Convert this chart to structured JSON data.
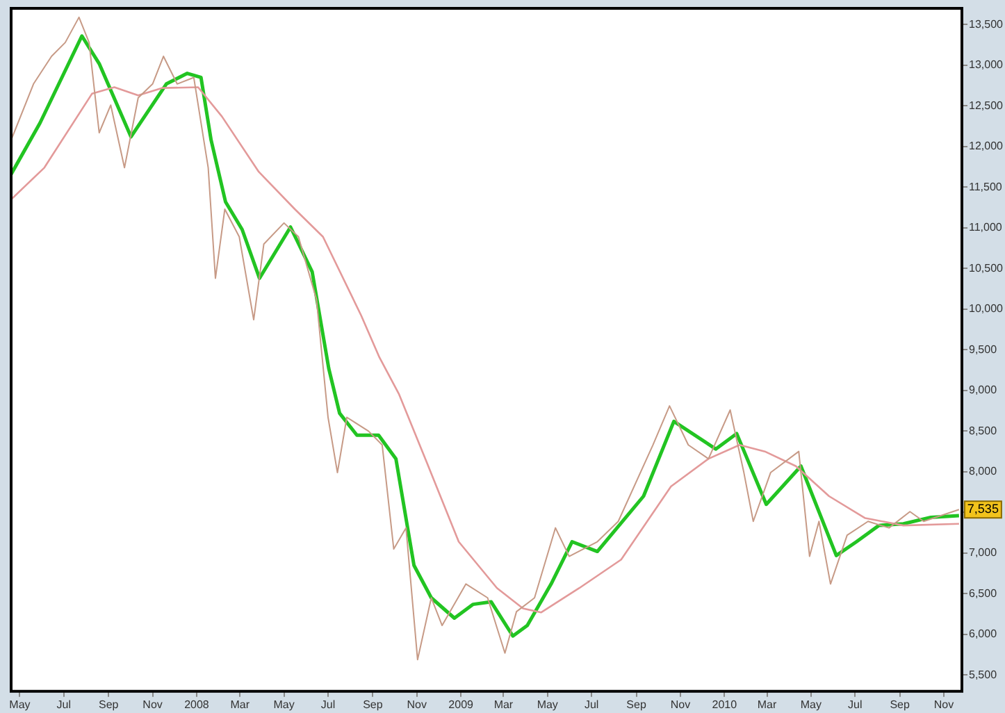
{
  "chart_data": {
    "type": "line",
    "xlim": [
      "2007-04-19",
      "2010-11-26"
    ],
    "ylim": [
      5300,
      13700
    ],
    "xticks": [
      {
        "value": "2007-05-01",
        "label": "May"
      },
      {
        "value": "2007-07-01",
        "label": "Jul"
      },
      {
        "value": "2007-09-01",
        "label": "Sep"
      },
      {
        "value": "2007-11-01",
        "label": "Nov"
      },
      {
        "value": "2008-01-01",
        "label": "2008"
      },
      {
        "value": "2008-03-01",
        "label": "Mar"
      },
      {
        "value": "2008-05-01",
        "label": "May"
      },
      {
        "value": "2008-07-01",
        "label": "Jul"
      },
      {
        "value": "2008-09-01",
        "label": "Sep"
      },
      {
        "value": "2008-11-01",
        "label": "Nov"
      },
      {
        "value": "2009-01-01",
        "label": "2009"
      },
      {
        "value": "2009-03-01",
        "label": "Mar"
      },
      {
        "value": "2009-05-01",
        "label": "May"
      },
      {
        "value": "2009-07-01",
        "label": "Jul"
      },
      {
        "value": "2009-09-01",
        "label": "Sep"
      },
      {
        "value": "2009-11-01",
        "label": "Nov"
      },
      {
        "value": "2010-01-01",
        "label": "2010"
      },
      {
        "value": "2010-03-01",
        "label": "Mar"
      },
      {
        "value": "2010-05-01",
        "label": "May"
      },
      {
        "value": "2010-07-01",
        "label": "Jul"
      },
      {
        "value": "2010-09-01",
        "label": "Sep"
      },
      {
        "value": "2010-11-01",
        "label": "Nov"
      }
    ],
    "yticks": [
      {
        "value": 5500,
        "label": "5,500"
      },
      {
        "value": 6000,
        "label": "6,000"
      },
      {
        "value": 6500,
        "label": "6,500"
      },
      {
        "value": 7000,
        "label": "7,000"
      },
      {
        "value": 7500,
        "label": null
      },
      {
        "value": 8000,
        "label": "8,000"
      },
      {
        "value": 8500,
        "label": "8,500"
      },
      {
        "value": 9000,
        "label": "9,000"
      },
      {
        "value": 9500,
        "label": "9,500"
      },
      {
        "value": 10000,
        "label": "10,000"
      },
      {
        "value": 10500,
        "label": "10,500"
      },
      {
        "value": 11000,
        "label": "11,000"
      },
      {
        "value": 11500,
        "label": "11,500"
      },
      {
        "value": 12000,
        "label": "12,000"
      },
      {
        "value": 12500,
        "label": "12,500"
      },
      {
        "value": 13000,
        "label": "13,000"
      },
      {
        "value": 13500,
        "label": "13,500"
      }
    ],
    "grid": false,
    "legend": false,
    "marker": "none",
    "annotations": [
      {
        "text": "7,535",
        "x": "2010-11-22",
        "y": 7535
      }
    ],
    "series": [
      {
        "color": "#c79a86",
        "x": [
          "2007-04-19",
          "2007-05-20",
          "2007-06-14",
          "2007-07-03",
          "2007-07-22",
          "2007-08-05",
          "2007-08-19",
          "2007-09-04",
          "2007-09-23",
          "2007-10-12",
          "2007-11-01",
          "2007-11-16",
          "2007-12-05",
          "2007-12-28",
          "2008-01-17",
          "2008-01-27",
          "2008-02-09",
          "2008-02-29",
          "2008-03-20",
          "2008-04-03",
          "2008-05-01",
          "2008-05-21",
          "2008-06-15",
          "2008-07-01",
          "2008-07-14",
          "2008-07-27",
          "2008-08-26",
          "2008-09-14",
          "2008-09-30",
          "2008-10-17",
          "2008-11-02",
          "2008-11-21",
          "2008-12-06",
          "2009-01-08",
          "2009-02-07",
          "2009-03-03",
          "2009-03-19",
          "2009-04-13",
          "2009-05-12",
          "2009-05-31",
          "2009-07-09",
          "2009-08-07",
          "2009-09-24",
          "2009-10-17",
          "2009-11-12",
          "2009-12-10",
          "2010-01-09",
          "2010-01-28",
          "2010-02-10",
          "2010-03-06",
          "2010-04-14",
          "2010-04-29",
          "2010-05-12",
          "2010-05-28",
          "2010-06-20",
          "2010-07-19",
          "2010-08-17",
          "2010-09-15",
          "2010-10-04",
          "2010-11-22"
        ],
        "values": [
          12080,
          12770,
          13110,
          13280,
          13590,
          13280,
          12170,
          12510,
          11740,
          12600,
          12770,
          13110,
          12770,
          12850,
          11740,
          10380,
          11230,
          10890,
          9870,
          10800,
          11060,
          10890,
          10120,
          8670,
          7990,
          8670,
          8500,
          8330,
          7050,
          7310,
          5690,
          6450,
          6110,
          6620,
          6450,
          5770,
          6280,
          6450,
          7310,
          6960,
          7140,
          7390,
          8330,
          8810,
          8330,
          8160,
          8760,
          7990,
          7390,
          7990,
          8250,
          6960,
          7390,
          6620,
          7220,
          7390,
          7310,
          7510,
          7390,
          7535
        ]
      },
      {
        "color": "#e39a9a",
        "x": [
          "2007-04-19",
          "2007-06-04",
          "2007-08-09",
          "2007-09-09",
          "2007-10-12",
          "2007-11-14",
          "2008-01-03",
          "2008-02-05",
          "2008-03-27",
          "2008-05-16",
          "2008-06-24",
          "2008-08-16",
          "2008-09-10",
          "2008-10-07",
          "2008-11-15",
          "2008-12-29",
          "2009-02-20",
          "2009-03-28",
          "2009-04-22",
          "2009-06-14",
          "2009-08-11",
          "2009-10-19",
          "2009-12-10",
          "2010-01-22",
          "2010-02-26",
          "2010-04-10",
          "2010-05-26",
          "2010-07-15",
          "2010-09-06",
          "2010-11-22"
        ],
        "values": [
          11350,
          11740,
          12650,
          12730,
          12630,
          12720,
          12730,
          12370,
          11690,
          11230,
          10890,
          9920,
          9410,
          8960,
          8110,
          7140,
          6570,
          6320,
          6270,
          6570,
          6920,
          7820,
          8160,
          8330,
          8250,
          8070,
          7700,
          7430,
          7340,
          7360
        ]
      },
      {
        "color": "#22c422",
        "x": [
          "2007-04-19",
          "2007-05-29",
          "2007-07-26",
          "2007-08-19",
          "2007-10-02",
          "2007-11-20",
          "2007-12-19",
          "2008-01-07",
          "2008-01-21",
          "2008-02-10",
          "2008-03-04",
          "2008-03-28",
          "2008-05-10",
          "2008-06-09",
          "2008-07-02",
          "2008-07-17",
          "2008-08-10",
          "2008-09-09",
          "2008-10-03",
          "2008-10-28",
          "2008-11-21",
          "2008-12-23",
          "2009-01-18",
          "2009-02-12",
          "2009-03-14",
          "2009-04-03",
          "2009-05-06",
          "2009-06-04",
          "2009-07-09",
          "2009-09-11",
          "2009-10-23",
          "2009-12-20",
          "2010-01-18",
          "2010-02-28",
          "2010-04-17",
          "2010-06-05",
          "2010-07-03",
          "2010-08-03",
          "2010-09-06",
          "2010-10-14",
          "2010-11-22"
        ],
        "values": [
          11660,
          12290,
          13360,
          13020,
          12120,
          12770,
          12900,
          12850,
          12080,
          11320,
          10980,
          10380,
          11010,
          10460,
          9270,
          8720,
          8450,
          8450,
          8160,
          6850,
          6450,
          6200,
          6370,
          6400,
          5980,
          6110,
          6620,
          7140,
          7020,
          7700,
          8620,
          8280,
          8470,
          7600,
          8070,
          6970,
          7140,
          7340,
          7360,
          7440,
          7460
        ]
      }
    ]
  }
}
